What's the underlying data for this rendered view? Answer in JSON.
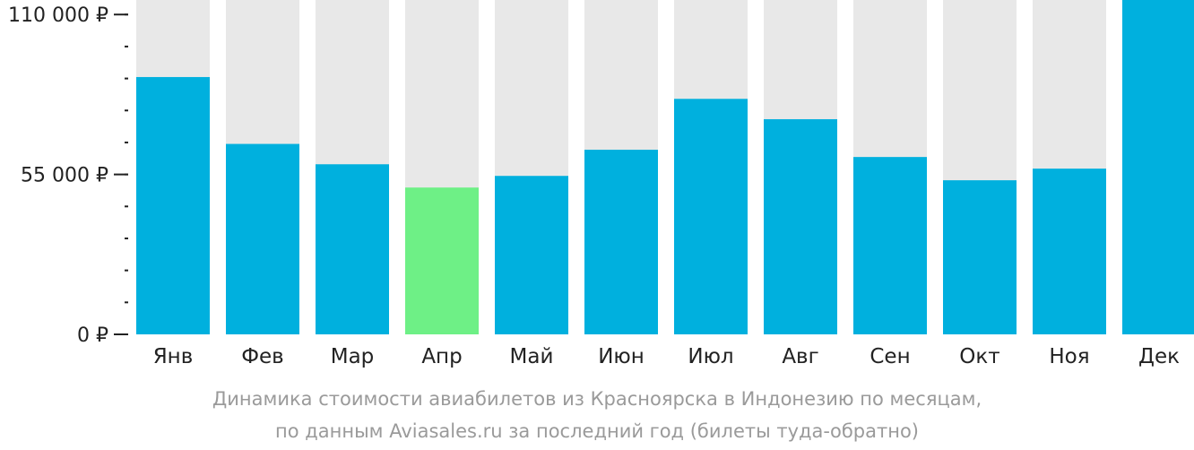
{
  "chart_data": {
    "type": "bar",
    "categories": [
      "Янв",
      "Фев",
      "Мар",
      "Апр",
      "Май",
      "Июн",
      "Июл",
      "Авг",
      "Сен",
      "Окт",
      "Ноя",
      "Дек"
    ],
    "values": [
      88500,
      65500,
      58500,
      50500,
      54500,
      63500,
      81000,
      74000,
      61000,
      53000,
      57000,
      115000
    ],
    "highlight_index": 3,
    "ylim": [
      0,
      115000
    ],
    "yticks": [
      {
        "value": 0,
        "label": "0 ₽"
      },
      {
        "value": 55000,
        "label": "55 000 ₽"
      },
      {
        "value": 110000,
        "label": "110 000 ₽"
      }
    ],
    "minor_tick_step": 11000,
    "colors": {
      "bar": "#00b0de",
      "highlight": "#6ef086",
      "background_bar": "#e8e8e8",
      "axis": "#222222"
    }
  },
  "caption": {
    "line1": "Динамика стоимости авиабилетов из Красноярска в Индонезию по месяцам,",
    "line2": "по данным Aviasales.ru за последний год (билеты туда-обратно)"
  }
}
